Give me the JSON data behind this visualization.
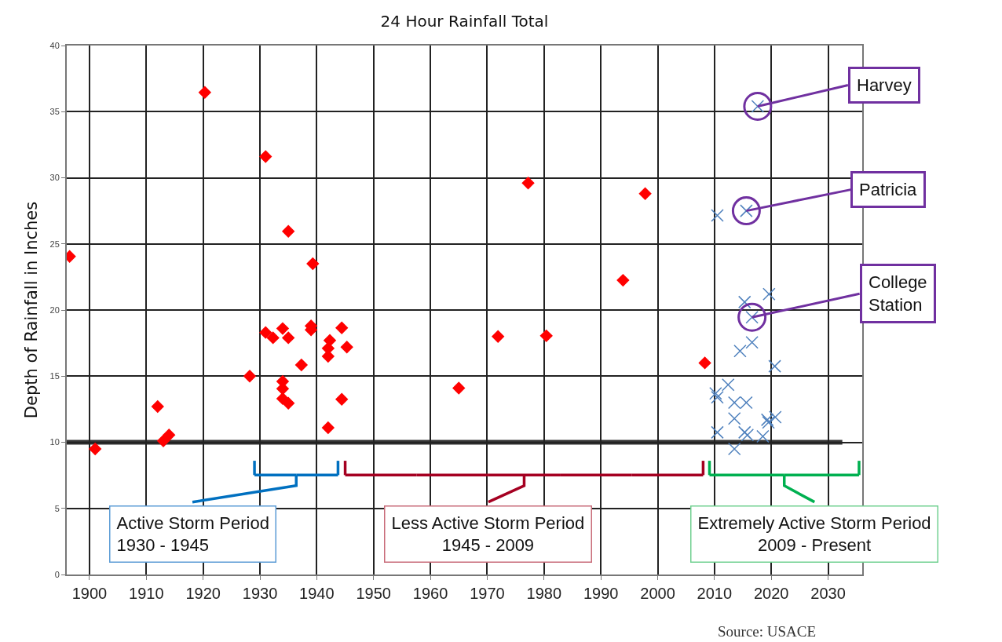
{
  "chart_data": {
    "type": "scatter",
    "title": "24 Hour Rainfall Total",
    "ylabel": "Depth of Rainfall in Inches",
    "xlim": [
      1896,
      2036
    ],
    "xticks": [
      1900,
      1910,
      1920,
      1930,
      1940,
      1950,
      1960,
      1970,
      1980,
      1990,
      2000,
      2010,
      2020,
      2030
    ],
    "ylim": [
      0,
      40
    ],
    "yticks": [
      0,
      5,
      10,
      15,
      20,
      25,
      30,
      35,
      40
    ],
    "grid": true,
    "series": [
      {
        "color": "#ff0000",
        "marker": "diamond",
        "x": [
          1896.5,
          1901,
          1912,
          1913,
          1914,
          1920.3,
          1928.2,
          1931,
          1931,
          1932.3,
          1934,
          1935,
          1935,
          1934,
          1934,
          1934,
          1935,
          1937.3,
          1939.3,
          1939,
          1939,
          1942.3,
          1942,
          1942,
          1942,
          1944.4,
          1944.4,
          1945.3,
          1965,
          1971.9,
          1977.2,
          1980.4,
          1993.9,
          1997.8,
          2008.3
        ],
        "values": [
          24.05,
          9.5,
          12.7,
          10.1,
          10.55,
          36.45,
          15.0,
          31.6,
          18.3,
          17.9,
          18.6,
          17.9,
          25.95,
          14.6,
          14.05,
          13.3,
          12.95,
          15.85,
          23.5,
          18.8,
          18.5,
          17.7,
          17.1,
          16.5,
          11.1,
          18.65,
          13.25,
          17.2,
          14.1,
          18.0,
          29.6,
          18.05,
          22.25,
          28.8,
          16.0
        ]
      },
      {
        "color": "#4f81bd",
        "marker": "cross",
        "x": [
          2017.6,
          2015.6,
          2010.5,
          2016.6,
          2015.3,
          2019.6,
          2016.6,
          2014.5,
          2020.6,
          2012.4,
          2010.2,
          2010.5,
          2013.5,
          2015.6,
          2013.5,
          2019.3,
          2020.7,
          2019.5,
          2010.5,
          2015.3,
          2015.8,
          2018.5,
          2013.5
        ],
        "values": [
          35.4,
          27.5,
          27.15,
          19.45,
          20.6,
          21.2,
          17.55,
          16.9,
          15.75,
          14.35,
          13.7,
          13.4,
          13.0,
          13.0,
          11.8,
          11.7,
          11.9,
          11.5,
          10.75,
          10.75,
          10.55,
          10.45,
          9.5
        ]
      }
    ],
    "ref_lines": [
      {
        "axis": "y",
        "value": 10,
        "color": "#333333"
      }
    ],
    "annotations": [
      {
        "text": "Harvey",
        "x": 2017.6,
        "y": 35.4
      },
      {
        "text": "Patricia",
        "x": 2015.6,
        "y": 27.5
      },
      {
        "text": "College\nStation",
        "x": 2016.6,
        "y": 19.45
      },
      "Active Storm Period\n1930 - 1945",
      "Less Active Storm Period\n1945 - 2009",
      "Extremely Active Storm Period\n2009 - Present",
      "Source: USACE"
    ]
  }
}
